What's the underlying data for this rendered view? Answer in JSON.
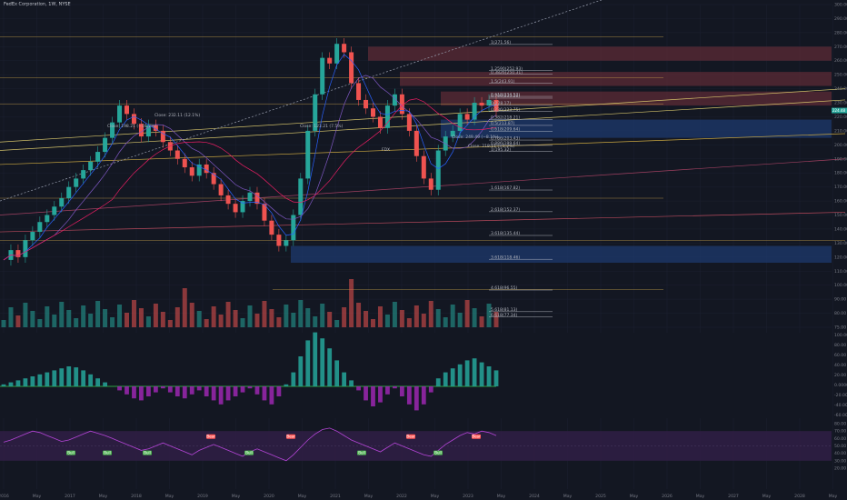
{
  "header": {
    "symbol_label": "FedEx Corporation, 1W, NYSE"
  },
  "colors": {
    "background": "#131722",
    "up": "#26a69a",
    "down": "#ef5350",
    "fib": "#d1d4dc",
    "trendline": "#d4c36a",
    "supply_zone": "#5c2b35",
    "demand_zone": "#1e3a6e",
    "macd_hist_up": "#26a69a",
    "macd_hist_down": "#9c27b0",
    "rsi_line": "#b445d6",
    "rsi_band": "#2f1e44"
  },
  "chart_data": {
    "type": "candlestick",
    "price_axis_ticks": [
      "300.00",
      "290.00",
      "280.00",
      "270.00",
      "260.00",
      "250.00",
      "240.00",
      "230.00",
      "220.00",
      "210.00",
      "200.00",
      "190.00",
      "180.00",
      "170.00",
      "160.00",
      "150.00",
      "140.00",
      "130.00",
      "120.00",
      "110.00",
      "100.00",
      "90.00",
      "80.00",
      "75.00"
    ],
    "time_axis_labels": [
      "2016",
      "May",
      "2017",
      "May",
      "2018",
      "May",
      "2019",
      "May",
      "2020",
      "May",
      "2021",
      "May",
      "2022",
      "May",
      "2023",
      "May",
      "2024",
      "May",
      "2025",
      "May",
      "2026",
      "May",
      "2027",
      "May",
      "2028",
      "May",
      "2029",
      "May"
    ],
    "current_price_label": "224.48",
    "ylim": [
      70,
      300
    ],
    "close_series": [
      118,
      125,
      120,
      132,
      138,
      145,
      150,
      156,
      162,
      170,
      176,
      182,
      188,
      195,
      205,
      216,
      228,
      222,
      215,
      206,
      214,
      210,
      202,
      196,
      190,
      184,
      178,
      186,
      180,
      172,
      164,
      158,
      152,
      160,
      166,
      158,
      146,
      136,
      128,
      132,
      150,
      176,
      210,
      236,
      262,
      258,
      272,
      266,
      244,
      232,
      226,
      220,
      212,
      228,
      236,
      222,
      210,
      192,
      176,
      168,
      196,
      206,
      210,
      222,
      218,
      230,
      228,
      232,
      224
    ],
    "fib_levels": [
      {
        "label": "1(271.56)",
        "price": 271.56
      },
      {
        "label": "1.2590(252.93)",
        "price": 252.93
      },
      {
        "label": "0.3826(250.31)",
        "price": 250.31
      },
      {
        "label": "1.5(243.91)",
        "price": 243.91
      },
      {
        "label": "0.618(234.53)",
        "price": 234.53
      },
      {
        "label": "0.786(233.28)",
        "price": 233.28
      },
      {
        "label": "0(228.17)",
        "price": 228.17
      },
      {
        "label": "0.236(223.75)",
        "price": 223.75
      },
      {
        "label": "0.382(218.21)",
        "price": 218.21
      },
      {
        "label": "0.5(213.87)",
        "price": 213.87
      },
      {
        "label": "0.618(209.64)",
        "price": 209.64
      },
      {
        "label": "0.786(203.43)",
        "price": 203.43
      },
      {
        "label": "0.886(199.64)",
        "price": 199.64
      },
      {
        "label": "1(195.32)",
        "price": 195.32
      },
      {
        "label": "1.618(167.82)",
        "price": 167.82
      },
      {
        "label": "2.618(152.37)",
        "price": 152.37
      },
      {
        "label": "3.618(135.44)",
        "price": 135.44
      },
      {
        "label": "3.618(118.46)",
        "price": 118.46
      },
      {
        "label": "4.618(96.55)",
        "price": 96.55
      },
      {
        "label": "5.618(81.13)",
        "price": 81.13
      },
      {
        "label": "6.618(77.34)",
        "price": 77.34
      }
    ],
    "annotations": [
      "Close: 198.21 (−16.7%)",
      "Close: 232.11 (12.1%)",
      "Close: 123.21 (7.5%)",
      "Close: 249.49 (−8.1%)",
      "Close: 218.11 (+5.2%)",
      "FDX"
    ],
    "macd_range": [
      -50,
      50
    ],
    "macd_axis_ticks": [
      "100.00",
      "80.00",
      "60.00",
      "40.00",
      "20.00",
      "0.0000",
      "-20.00",
      "-40.00",
      "-60.00"
    ],
    "macd_hist": [
      2,
      4,
      6,
      8,
      10,
      12,
      14,
      16,
      18,
      20,
      19,
      16,
      12,
      8,
      4,
      0,
      -4,
      -8,
      -12,
      -14,
      -10,
      -6,
      -2,
      -6,
      -10,
      -12,
      -8,
      -4,
      -10,
      -14,
      -18,
      -14,
      -10,
      -6,
      -2,
      -8,
      -14,
      -18,
      -10,
      2,
      14,
      30,
      46,
      54,
      48,
      38,
      26,
      14,
      6,
      -4,
      -14,
      -20,
      -16,
      -8,
      -2,
      -10,
      -18,
      -24,
      -18,
      -6,
      8,
      14,
      18,
      22,
      26,
      28,
      24,
      20,
      16
    ],
    "rsi_axis_ticks": [
      "80.00",
      "70.00",
      "60.00",
      "50.00",
      "40.00",
      "30.00",
      "20.00"
    ],
    "rsi_values": [
      55,
      58,
      62,
      66,
      70,
      68,
      64,
      60,
      56,
      58,
      62,
      66,
      70,
      67,
      64,
      60,
      56,
      52,
      48,
      44,
      46,
      50,
      54,
      50,
      46,
      42,
      38,
      44,
      48,
      52,
      48,
      44,
      40,
      36,
      42,
      46,
      42,
      38,
      34,
      30,
      38,
      48,
      58,
      66,
      72,
      74,
      70,
      64,
      58,
      54,
      50,
      46,
      42,
      48,
      54,
      50,
      46,
      42,
      38,
      36,
      44,
      52,
      58,
      64,
      68,
      66,
      70,
      68,
      64
    ],
    "rsi_badges": [
      "Bull",
      "Bull",
      "Bull",
      "Bear",
      "Bull",
      "Bear",
      "Bull",
      "Bear",
      "Bull",
      "Bear"
    ]
  }
}
